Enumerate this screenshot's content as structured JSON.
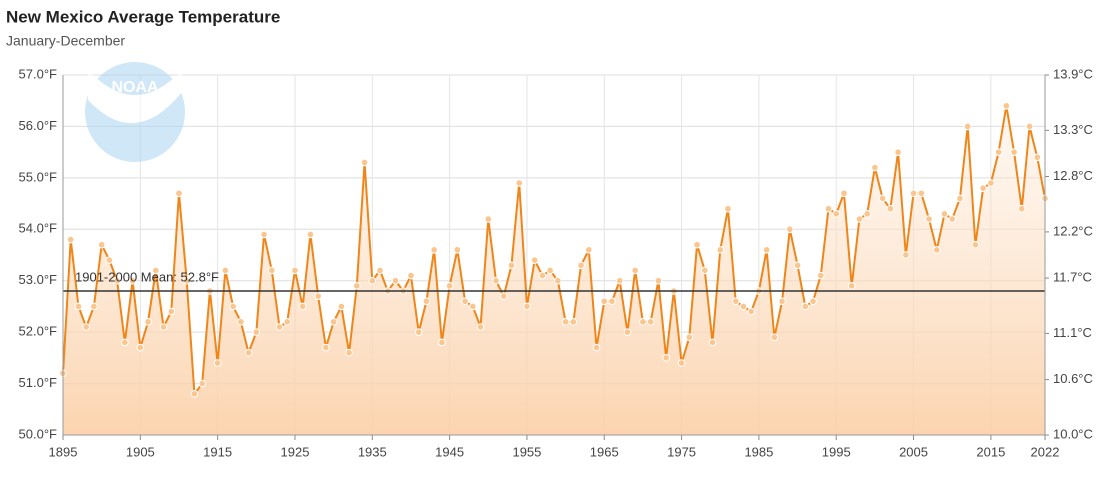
{
  "chart_data": {
    "type": "line",
    "title": "New Mexico Average Temperature",
    "subtitle": "January-December",
    "logo_text": "NOAA",
    "x": [
      1895,
      1896,
      1897,
      1898,
      1899,
      1900,
      1901,
      1902,
      1903,
      1904,
      1905,
      1906,
      1907,
      1908,
      1909,
      1910,
      1911,
      1912,
      1913,
      1914,
      1915,
      1916,
      1917,
      1918,
      1919,
      1920,
      1921,
      1922,
      1923,
      1924,
      1925,
      1926,
      1927,
      1928,
      1929,
      1930,
      1931,
      1932,
      1933,
      1934,
      1935,
      1936,
      1937,
      1938,
      1939,
      1940,
      1941,
      1942,
      1943,
      1944,
      1945,
      1946,
      1947,
      1948,
      1949,
      1950,
      1951,
      1952,
      1953,
      1954,
      1955,
      1956,
      1957,
      1958,
      1959,
      1960,
      1961,
      1962,
      1963,
      1964,
      1965,
      1966,
      1967,
      1968,
      1969,
      1970,
      1971,
      1972,
      1973,
      1974,
      1975,
      1976,
      1977,
      1978,
      1979,
      1980,
      1981,
      1982,
      1983,
      1984,
      1985,
      1986,
      1987,
      1988,
      1989,
      1990,
      1991,
      1992,
      1993,
      1994,
      1995,
      1996,
      1997,
      1998,
      1999,
      2000,
      2001,
      2002,
      2003,
      2004,
      2005,
      2006,
      2007,
      2008,
      2009,
      2010,
      2011,
      2012,
      2013,
      2014,
      2015,
      2016,
      2017,
      2018,
      2019,
      2020,
      2021,
      2022
    ],
    "series": [
      {
        "color": "#f08519",
        "values": [
          51.2,
          53.8,
          52.5,
          52.1,
          52.5,
          53.7,
          53.4,
          53.0,
          51.8,
          53.0,
          51.7,
          52.2,
          53.2,
          52.1,
          52.4,
          54.7,
          53.0,
          50.8,
          51.0,
          52.8,
          51.4,
          53.2,
          52.5,
          52.2,
          51.6,
          52.0,
          53.9,
          53.2,
          52.1,
          52.2,
          53.2,
          52.5,
          53.9,
          52.7,
          51.7,
          52.2,
          52.5,
          51.6,
          52.9,
          55.3,
          53.0,
          53.2,
          52.8,
          53.0,
          52.8,
          53.1,
          52.0,
          52.6,
          53.6,
          51.8,
          52.9,
          53.6,
          52.6,
          52.5,
          52.1,
          54.2,
          53.0,
          52.7,
          53.3,
          54.9,
          52.5,
          53.4,
          53.1,
          53.2,
          53.0,
          52.2,
          52.2,
          53.3,
          53.6,
          51.7,
          52.6,
          52.6,
          53.0,
          52.0,
          53.2,
          52.2,
          52.2,
          53.0,
          51.5,
          52.8,
          51.4,
          51.9,
          53.7,
          53.2,
          51.8,
          53.6,
          54.4,
          52.6,
          52.5,
          52.4,
          52.8,
          53.6,
          51.9,
          52.6,
          54.0,
          53.3,
          52.5,
          52.6,
          53.1,
          54.4,
          54.3,
          54.7,
          52.9,
          54.2,
          54.3,
          55.2,
          54.6,
          54.4,
          55.5,
          53.5,
          54.7,
          54.7,
          54.2,
          53.6,
          54.3,
          54.2,
          54.6,
          56.0,
          53.7,
          54.8,
          54.9,
          55.5,
          56.4,
          55.5,
          54.4,
          56.0,
          55.4,
          54.6
        ]
      }
    ],
    "mean": {
      "value": 52.8,
      "label": "1901-2000 Mean: 52.8°F"
    },
    "xlim": [
      1895,
      2022
    ],
    "xticks": [
      1895,
      1905,
      1915,
      1925,
      1935,
      1945,
      1955,
      1965,
      1975,
      1985,
      1995,
      2005,
      2015,
      2022
    ],
    "ylim": [
      50,
      57
    ],
    "yticks": [
      {
        "value": 50,
        "label": "50.0°F"
      },
      {
        "value": 51,
        "label": "51.0°F"
      },
      {
        "value": 52,
        "label": "52.0°F"
      },
      {
        "value": 53,
        "label": "53.0°F"
      },
      {
        "value": 54,
        "label": "54.0°F"
      },
      {
        "value": 55,
        "label": "55.0°F"
      },
      {
        "value": 56,
        "label": "56.0°F"
      },
      {
        "value": 57,
        "label": "57.0°F"
      }
    ],
    "y2lim": [
      10.0,
      13.9
    ],
    "y2ticks": [
      {
        "value": 10.0,
        "label": "10.0°C"
      },
      {
        "value": 10.6,
        "label": "10.6°C"
      },
      {
        "value": 11.1,
        "label": "11.1°C"
      },
      {
        "value": 11.7,
        "label": "11.7°C"
      },
      {
        "value": 12.2,
        "label": "12.2°C"
      },
      {
        "value": 12.8,
        "label": "12.8°C"
      },
      {
        "value": 13.3,
        "label": "13.3°C"
      },
      {
        "value": 13.9,
        "label": "13.9°C"
      }
    ],
    "grid": true
  }
}
